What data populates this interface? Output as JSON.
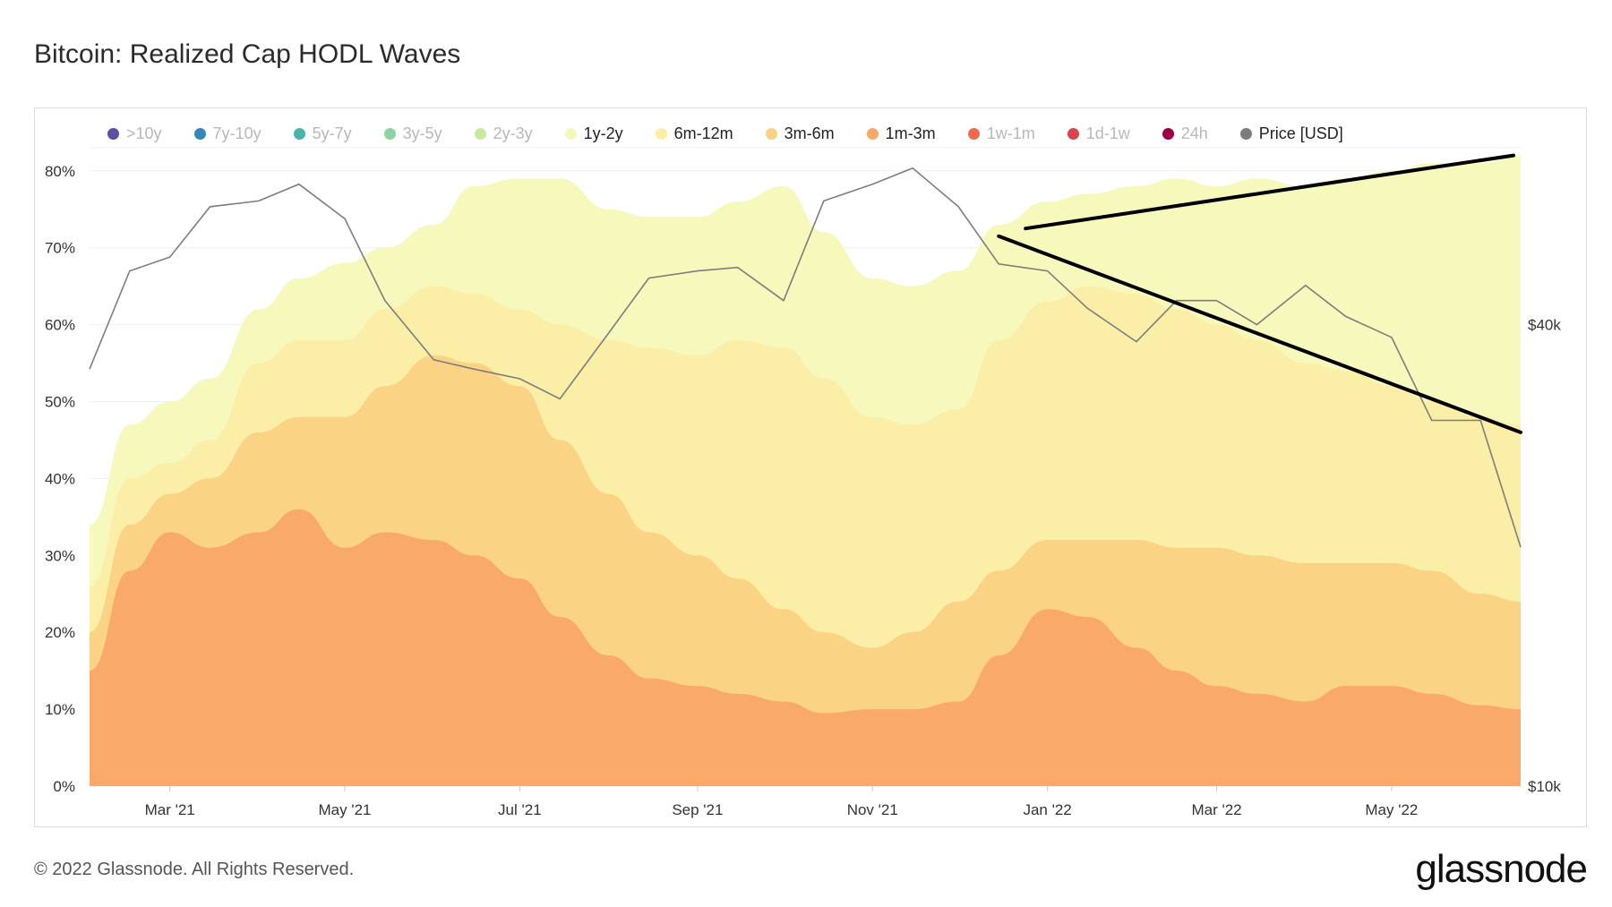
{
  "title": "Bitcoin: Realized Cap HODL Waves",
  "watermark": "glassnode",
  "footer": "© 2022 Glassnode. All Rights Reserved.",
  "brand": "glassnode",
  "chart_data": {
    "type": "area",
    "title": "Bitcoin: Realized Cap HODL Waves",
    "legend_position": "top",
    "grid": true,
    "x_ticks": [
      "Mar '21",
      "May '21",
      "Jul '21",
      "Sep '21",
      "Nov '21",
      "Jan '22",
      "Mar '22",
      "May '22"
    ],
    "y_left_ticks": [
      "0%",
      "10%",
      "20%",
      "30%",
      "40%",
      "50%",
      "60%",
      "70%",
      "80%"
    ],
    "y_right_ticks": [
      "$10k",
      "$40k"
    ],
    "y_left_range": [
      0,
      80
    ],
    "y_right_scale": "log",
    "legend": [
      {
        "name": ">10y",
        "color": "#5e4fa2",
        "active": false
      },
      {
        "name": "7y-10y",
        "color": "#3288bd",
        "active": false
      },
      {
        "name": "5y-7y",
        "color": "#48b5a8",
        "active": false
      },
      {
        "name": "3y-5y",
        "color": "#8fd3a3",
        "active": false
      },
      {
        "name": "2y-3y",
        "color": "#c9e99e",
        "active": false
      },
      {
        "name": "1y-2y",
        "color": "#f5f8b8",
        "active": true
      },
      {
        "name": "6m-12m",
        "color": "#fbeda4",
        "active": true
      },
      {
        "name": "3m-6m",
        "color": "#fbd183",
        "active": true
      },
      {
        "name": "1m-3m",
        "color": "#f9a868",
        "active": true
      },
      {
        "name": "1w-1m",
        "color": "#f06a4a",
        "active": false
      },
      {
        "name": "1d-1w",
        "color": "#d9434c",
        "active": false
      },
      {
        "name": "24h",
        "color": "#9e0142",
        "active": false
      },
      {
        "name": "Price [USD]",
        "color": "#7d7d7d",
        "active": true
      }
    ],
    "dates": [
      "2021-02-01",
      "2021-02-15",
      "2021-03-01",
      "2021-03-15",
      "2021-04-01",
      "2021-04-15",
      "2021-05-01",
      "2021-05-15",
      "2021-06-01",
      "2021-06-15",
      "2021-07-01",
      "2021-07-15",
      "2021-08-01",
      "2021-08-15",
      "2021-09-01",
      "2021-09-15",
      "2021-10-01",
      "2021-10-15",
      "2021-11-01",
      "2021-11-15",
      "2021-12-01",
      "2021-12-15",
      "2022-01-01",
      "2022-01-15",
      "2022-02-01",
      "2022-02-15",
      "2022-03-01",
      "2022-03-15",
      "2022-04-01",
      "2022-04-15",
      "2022-05-01",
      "2022-05-15",
      "2022-06-01",
      "2022-06-15"
    ],
    "series": [
      {
        "name": "1m-3m",
        "cumulative": true,
        "values": [
          15,
          28,
          33,
          31,
          33,
          36,
          31,
          33,
          32,
          30,
          27,
          22,
          17,
          14,
          13,
          12,
          11,
          9.5,
          10,
          10,
          11,
          17,
          23,
          22,
          18,
          15,
          13,
          12,
          11,
          13,
          13,
          12,
          10.5,
          10
        ]
      },
      {
        "name": "3m-6m",
        "cumulative": true,
        "values": [
          20,
          34,
          38,
          40,
          46,
          48,
          48,
          52,
          56,
          55,
          52,
          45,
          38,
          33,
          30,
          27,
          23,
          20,
          18,
          20,
          24,
          28,
          32,
          32,
          32,
          31,
          31,
          30,
          29,
          29,
          29,
          28,
          25,
          24
        ]
      },
      {
        "name": "6m-12m",
        "cumulative": true,
        "values": [
          26,
          40,
          42,
          45,
          55,
          58,
          58,
          62,
          65,
          64,
          62,
          60,
          58,
          57,
          56,
          58,
          57,
          53,
          48,
          47,
          49,
          58,
          63,
          65,
          64,
          62,
          60,
          58,
          55,
          54,
          52,
          50,
          48,
          47
        ]
      },
      {
        "name": "1y-2y",
        "cumulative": true,
        "values": [
          34,
          47,
          50,
          53,
          62,
          66,
          68,
          70,
          73,
          78,
          79,
          79,
          75,
          74,
          74,
          76,
          78,
          72,
          66,
          65,
          67,
          73,
          76,
          77,
          78,
          79,
          78,
          79,
          78,
          79,
          80,
          81,
          81,
          82
        ]
      },
      {
        "name": "Price [USD]",
        "values": [
          35000,
          47000,
          49000,
          57000,
          58000,
          61000,
          55000,
          43000,
          36000,
          35000,
          34000,
          32000,
          39000,
          46000,
          47000,
          47500,
          43000,
          58000,
          61000,
          64000,
          57000,
          48000,
          47000,
          42000,
          38000,
          43000,
          43000,
          40000,
          45000,
          41000,
          38500,
          30000,
          30000,
          20500
        ]
      }
    ]
  }
}
